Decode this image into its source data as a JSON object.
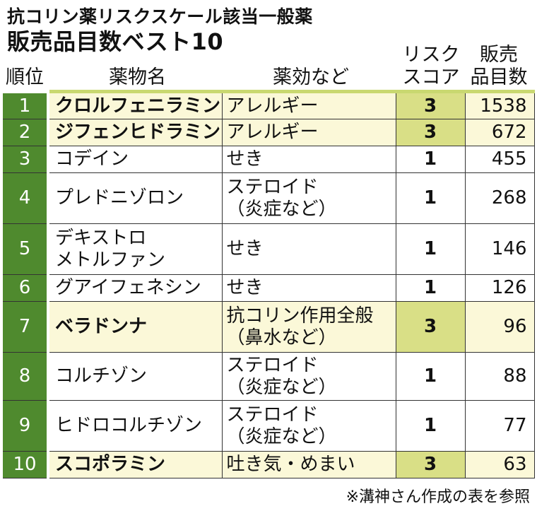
{
  "title": {
    "line1": "抗コリン薬リスクスケール該当一般薬",
    "line2": "販売品目数ベスト10"
  },
  "headers": {
    "rank": "順位",
    "name": "薬物名",
    "effect": "薬効など",
    "score_line1": "リスク",
    "score_line2": "スコア",
    "count_line1": "販売",
    "count_line2": "品目数"
  },
  "rows": [
    {
      "rank": "1",
      "name_lines": [
        "クロルフェニラミン"
      ],
      "effect_lines": [
        "アレルギー"
      ],
      "score": "3",
      "count": "1538",
      "highlight": true
    },
    {
      "rank": "2",
      "name_lines": [
        "ジフェンヒドラミン"
      ],
      "effect_lines": [
        "アレルギー"
      ],
      "score": "3",
      "count": "672",
      "highlight": true
    },
    {
      "rank": "3",
      "name_lines": [
        "コデイン"
      ],
      "effect_lines": [
        "せき"
      ],
      "score": "1",
      "count": "455",
      "highlight": false
    },
    {
      "rank": "4",
      "name_lines": [
        "プレドニゾロン"
      ],
      "effect_lines": [
        "ステロイド",
        "（炎症など）"
      ],
      "score": "1",
      "count": "268",
      "highlight": false
    },
    {
      "rank": "5",
      "name_lines": [
        "デキストロ",
        "メトルファン"
      ],
      "effect_lines": [
        "せき"
      ],
      "score": "1",
      "count": "146",
      "highlight": false
    },
    {
      "rank": "6",
      "name_lines": [
        "グアイフェネシン"
      ],
      "effect_lines": [
        "せき"
      ],
      "score": "1",
      "count": "126",
      "highlight": false
    },
    {
      "rank": "7",
      "name_lines": [
        "ベラドンナ"
      ],
      "effect_lines": [
        "抗コリン作用全般",
        "（鼻水など）"
      ],
      "score": "3",
      "count": "96",
      "highlight": true
    },
    {
      "rank": "8",
      "name_lines": [
        "コルチゾン"
      ],
      "effect_lines": [
        "ステロイド",
        "（炎症など）"
      ],
      "score": "1",
      "count": "88",
      "highlight": false
    },
    {
      "rank": "9",
      "name_lines": [
        "ヒドロコルチゾン"
      ],
      "effect_lines": [
        "ステロイド",
        "（炎症など）"
      ],
      "score": "1",
      "count": "77",
      "highlight": false
    },
    {
      "rank": "10",
      "name_lines": [
        "スコポラミン"
      ],
      "effect_lines": [
        "吐き気・めまい"
      ],
      "score": "3",
      "count": "63",
      "highlight": true
    }
  ],
  "note": "※溝神さん作成の表を参照",
  "colors": {
    "rank_bg": "#4f8a2e",
    "highlight_bg": "#fbf8d8",
    "score_highlight_bg": "#d9df86",
    "header_rule": "#c9d870"
  }
}
